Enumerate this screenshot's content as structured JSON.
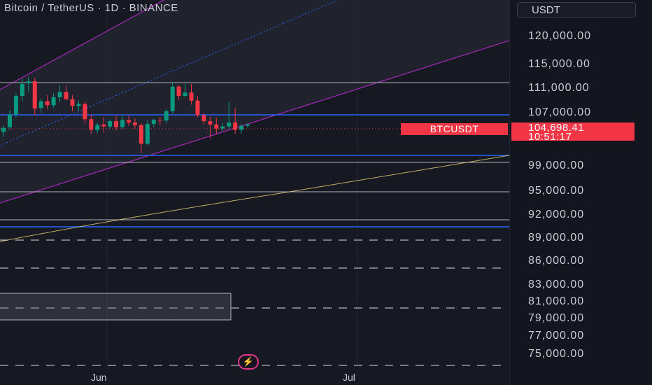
{
  "header": {
    "title": "Bitcoin / TetherUS · 1D · BINANCE"
  },
  "price_scale": {
    "currency": "USDT",
    "ticks": [
      {
        "label": "120,000.00",
        "value": 120000
      },
      {
        "label": "115,000.00",
        "value": 115000
      },
      {
        "label": "111,000.00",
        "value": 111000
      },
      {
        "label": "107,000.00",
        "value": 107000
      },
      {
        "label": "99,000.00",
        "value": 99000
      },
      {
        "label": "95,000.00",
        "value": 95000
      },
      {
        "label": "92,000.00",
        "value": 92000
      },
      {
        "label": "89,000.00",
        "value": 89000
      },
      {
        "label": "86,000.00",
        "value": 86000
      },
      {
        "label": "83,000.00",
        "value": 83000
      },
      {
        "label": "81,000.00",
        "value": 81000
      },
      {
        "label": "79,000.00",
        "value": 79000
      },
      {
        "label": "77,000.00",
        "value": 77000
      },
      {
        "label": "75,000.00",
        "value": 75000
      }
    ],
    "current_price": "104,698.41",
    "countdown": "10:51:17",
    "symbol": "BTCUSDT"
  },
  "time_axis": {
    "labels": [
      "Jun",
      "Jul"
    ]
  },
  "colors": {
    "up": "#089981",
    "down": "#f23645",
    "channel": "#9c27b0",
    "level_white": "#b2b5be",
    "level_blue": "#2962ff",
    "ma": "#e8d77a"
  },
  "chart_data": {
    "type": "candlestick",
    "symbol": "BTCUSDT",
    "interval": "1D",
    "candles": [
      {
        "o": 103600,
        "h": 104600,
        "l": 102900,
        "c": 104200
      },
      {
        "o": 104300,
        "h": 106800,
        "l": 103900,
        "c": 106200
      },
      {
        "o": 106200,
        "h": 109400,
        "l": 105800,
        "c": 109000
      },
      {
        "o": 109000,
        "h": 111600,
        "l": 108200,
        "c": 110800
      },
      {
        "o": 110900,
        "h": 111900,
        "l": 109600,
        "c": 111200
      },
      {
        "o": 111200,
        "h": 111700,
        "l": 106100,
        "c": 107100
      },
      {
        "o": 107200,
        "h": 108600,
        "l": 106500,
        "c": 108200
      },
      {
        "o": 108200,
        "h": 109100,
        "l": 107000,
        "c": 107600
      },
      {
        "o": 107600,
        "h": 109400,
        "l": 107200,
        "c": 108800
      },
      {
        "o": 108800,
        "h": 110600,
        "l": 108100,
        "c": 109600
      },
      {
        "o": 109600,
        "h": 110600,
        "l": 108300,
        "c": 108500
      },
      {
        "o": 108500,
        "h": 109100,
        "l": 106700,
        "c": 107500
      },
      {
        "o": 107500,
        "h": 108300,
        "l": 106700,
        "c": 107800
      },
      {
        "o": 107800,
        "h": 108100,
        "l": 104800,
        "c": 105500
      },
      {
        "o": 105500,
        "h": 106200,
        "l": 103300,
        "c": 103900
      },
      {
        "o": 103900,
        "h": 105000,
        "l": 103400,
        "c": 104600
      },
      {
        "o": 104700,
        "h": 105800,
        "l": 103500,
        "c": 104400
      },
      {
        "o": 104400,
        "h": 105500,
        "l": 104100,
        "c": 105200
      },
      {
        "o": 105200,
        "h": 106000,
        "l": 103800,
        "c": 104300
      },
      {
        "o": 104300,
        "h": 106200,
        "l": 104000,
        "c": 105400
      },
      {
        "o": 105400,
        "h": 106000,
        "l": 104500,
        "c": 105000
      },
      {
        "o": 105000,
        "h": 105600,
        "l": 104000,
        "c": 104600
      },
      {
        "o": 104600,
        "h": 104900,
        "l": 100400,
        "c": 101800
      },
      {
        "o": 101800,
        "h": 105300,
        "l": 101600,
        "c": 104800
      },
      {
        "o": 104800,
        "h": 105600,
        "l": 104300,
        "c": 105400
      },
      {
        "o": 105400,
        "h": 105800,
        "l": 104600,
        "c": 105300
      },
      {
        "o": 105300,
        "h": 107000,
        "l": 104900,
        "c": 106700
      },
      {
        "o": 106700,
        "h": 111000,
        "l": 106400,
        "c": 110400
      },
      {
        "o": 110400,
        "h": 110700,
        "l": 108400,
        "c": 109000
      },
      {
        "o": 109000,
        "h": 110900,
        "l": 108700,
        "c": 109500
      },
      {
        "o": 109500,
        "h": 110800,
        "l": 107700,
        "c": 108300
      },
      {
        "o": 108300,
        "h": 108900,
        "l": 105800,
        "c": 106100
      },
      {
        "o": 106100,
        "h": 106500,
        "l": 104700,
        "c": 105200
      },
      {
        "o": 105200,
        "h": 105900,
        "l": 102600,
        "c": 104700
      },
      {
        "o": 104700,
        "h": 105700,
        "l": 103300,
        "c": 104100
      },
      {
        "o": 104100,
        "h": 105000,
        "l": 103700,
        "c": 104400
      },
      {
        "o": 104400,
        "h": 108100,
        "l": 104100,
        "c": 105000
      },
      {
        "o": 105000,
        "h": 107200,
        "l": 103300,
        "c": 103900
      },
      {
        "o": 103900,
        "h": 104800,
        "l": 103300,
        "c": 104500
      },
      {
        "o": 104500,
        "h": 104900,
        "l": 104200,
        "c": 104698.41
      }
    ],
    "horizontal_levels": [
      {
        "price": 111000,
        "color": "white"
      },
      {
        "price": 107000,
        "color": "blue"
      },
      {
        "price": 99700,
        "color": "blue"
      },
      {
        "price": 99000,
        "color": "white"
      },
      {
        "price": 95000,
        "color": "white"
      },
      {
        "price": 92000,
        "color": "white"
      },
      {
        "price": 91300,
        "color": "blue"
      }
    ],
    "dashed_levels": [
      88400,
      85400,
      80500,
      75400
    ],
    "current_price": 104698.41
  }
}
